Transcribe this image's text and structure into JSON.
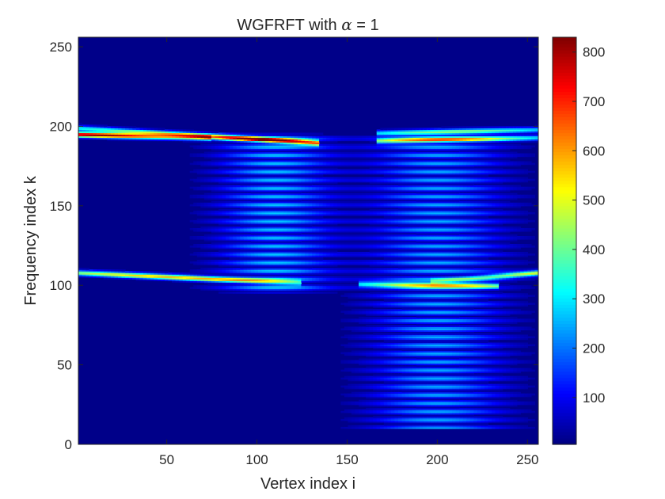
{
  "chart_data": {
    "type": "heatmap",
    "title_prefix": "WGFRFT with ",
    "title_symbol": "α",
    "title_suffix": " = 1",
    "xlabel": "Vertex index i",
    "ylabel": "Frequency index k",
    "xlim": [
      1,
      256
    ],
    "ylim": [
      0,
      256
    ],
    "xticks": [
      50,
      100,
      150,
      200,
      250
    ],
    "yticks": [
      0,
      50,
      100,
      150,
      200,
      250
    ],
    "colorbar": {
      "colormap": "jet",
      "clim": [
        5,
        830
      ],
      "ticks": [
        100,
        200,
        300,
        400,
        500,
        600,
        700,
        800
      ]
    },
    "ridges": [
      {
        "k_start": 199,
        "k_end": 190,
        "i_start": 1,
        "i_end": 130,
        "peak_i": 110,
        "peak_value": 700
      },
      {
        "k_start": 195,
        "k_end": 193,
        "i_start": 1,
        "i_end": 70,
        "peak_i": 10,
        "peak_value": 820
      },
      {
        "k_start": 196,
        "k_end": 198,
        "i_start": 170,
        "i_end": 256,
        "peak_i": 210,
        "peak_value": 420
      },
      {
        "k_start": 191,
        "k_end": 193,
        "i_start": 170,
        "i_end": 256,
        "peak_i": 200,
        "peak_value": 480
      },
      {
        "k_start": 108,
        "k_end": 102,
        "i_start": 1,
        "i_end": 120,
        "peak_i": 50,
        "peak_value": 560
      },
      {
        "k_start": 101,
        "k_end": 100,
        "i_start": 160,
        "i_end": 230,
        "peak_i": 200,
        "peak_value": 500
      },
      {
        "k_start": 103,
        "k_end": 108,
        "i_start": 200,
        "i_end": 256,
        "peak_i": 256,
        "peak_value": 480
      }
    ],
    "striped_regions": [
      {
        "i_center": 110,
        "i_width": 30,
        "k_min": 95,
        "k_max": 196,
        "peak_value": 260
      },
      {
        "i_center": 200,
        "i_width": 35,
        "k_min": 10,
        "k_max": 196,
        "peak_value": 240
      }
    ]
  }
}
